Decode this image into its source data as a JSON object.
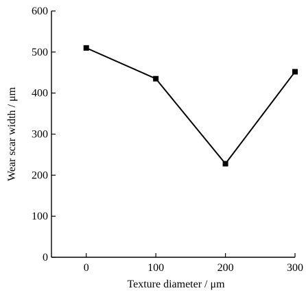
{
  "chart_data": {
    "type": "line",
    "title": "",
    "xlabel": "Texture diameter / μm",
    "ylabel": "Wear scar width / μm",
    "x": [
      0,
      100,
      200,
      300
    ],
    "series": [
      {
        "values": [
          510,
          435,
          228,
          452
        ],
        "marker": "square",
        "color": "#000000"
      }
    ],
    "xlim": [
      -50,
      300
    ],
    "ylim": [
      0,
      600
    ],
    "xticks": [
      "0",
      "100",
      "200",
      "300"
    ],
    "yticks": [
      "0",
      "100",
      "200",
      "300",
      "400",
      "500",
      "600"
    ],
    "grid": false,
    "legend": "none"
  }
}
